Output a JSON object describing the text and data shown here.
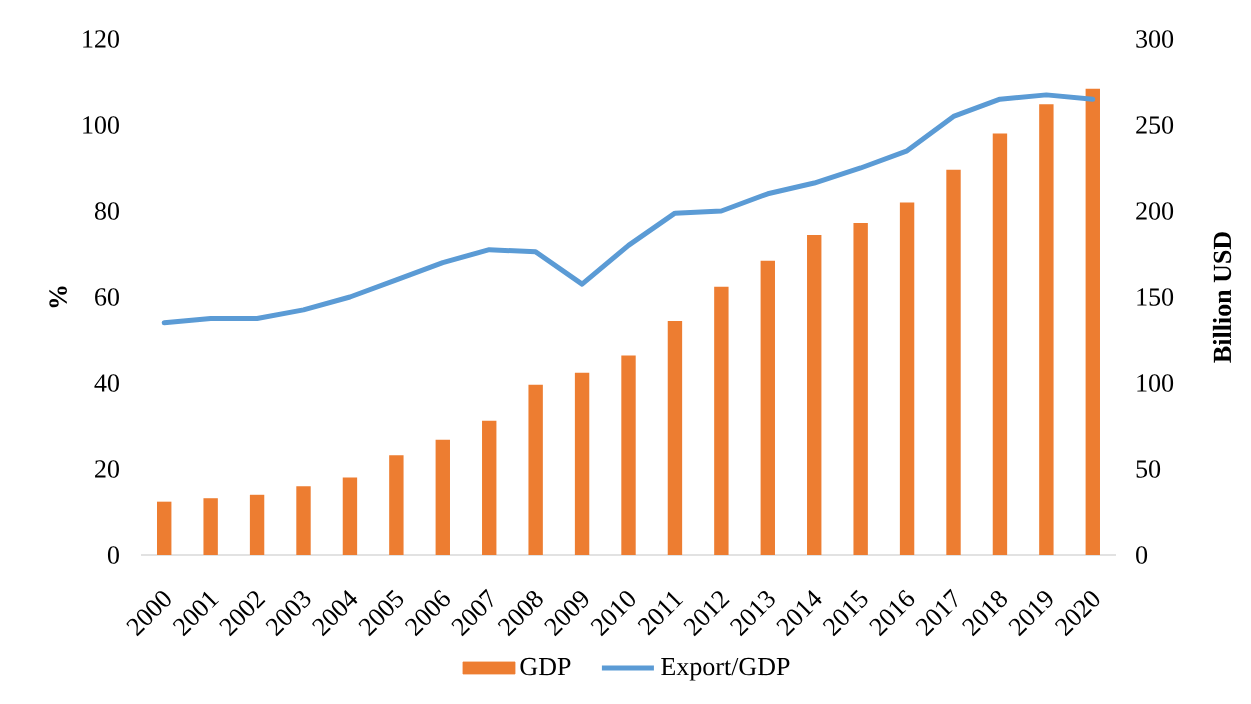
{
  "chart_data": {
    "type": "bar",
    "categories": [
      "2000",
      "2001",
      "2002",
      "2003",
      "2004",
      "2005",
      "2006",
      "2007",
      "2008",
      "2009",
      "2010",
      "2011",
      "2012",
      "2013",
      "2014",
      "2015",
      "2016",
      "2017",
      "2018",
      "2019",
      "2020"
    ],
    "series": [
      {
        "name": "GDP",
        "axis": "y2",
        "color": "#ed7d31",
        "values": [
          31,
          33,
          35,
          40,
          45,
          58,
          67,
          78,
          99,
          106,
          116,
          136,
          156,
          171,
          186,
          193,
          205,
          224,
          245,
          262,
          271
        ]
      },
      {
        "name": "Export/GDP",
        "type": "line",
        "color": "#5b9bd5",
        "values": [
          54,
          55,
          55,
          57,
          60,
          64,
          68,
          71,
          70.5,
          63,
          72,
          79.5,
          80,
          84,
          86.5,
          90,
          94,
          102,
          106,
          107,
          106
        ]
      }
    ],
    "ylabel": "%",
    "y2label": "Billion USD",
    "ylim": [
      0,
      120
    ],
    "yticks": [
      0,
      20,
      40,
      60,
      80,
      100,
      120
    ],
    "y2lim": [
      0,
      300
    ],
    "y2ticks": [
      0,
      50,
      100,
      150,
      200,
      250,
      300
    ],
    "legend": "bottom",
    "line_style": "solid"
  }
}
